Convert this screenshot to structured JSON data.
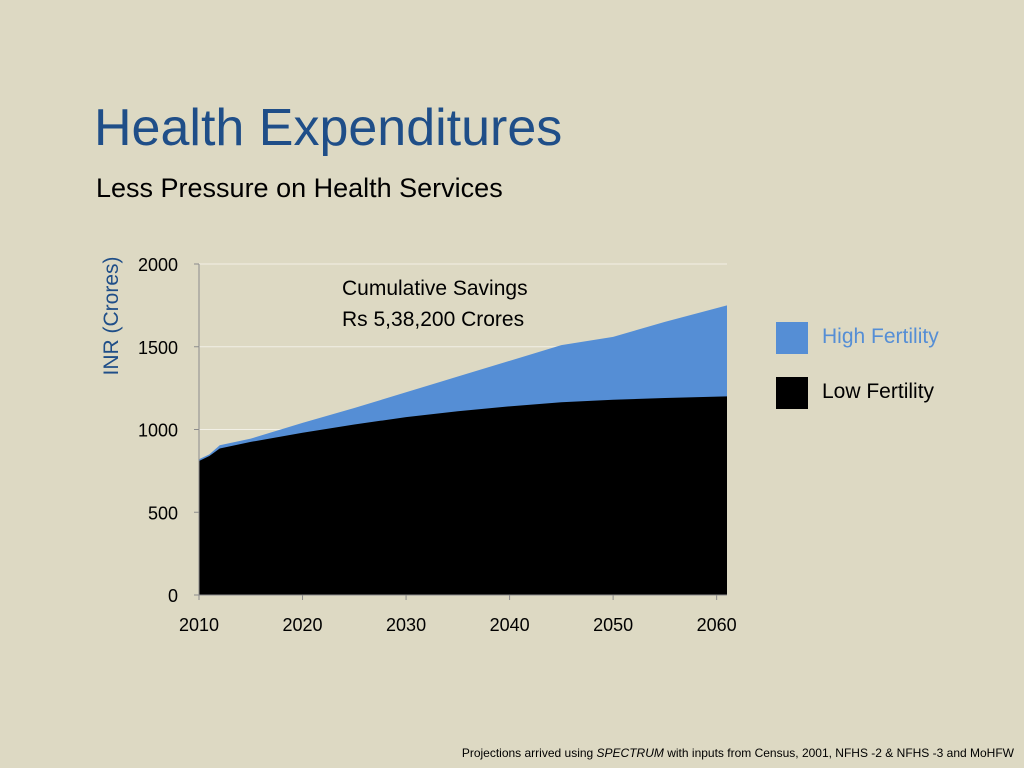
{
  "slide": {
    "title": "Health Expenditures",
    "subtitle": "Less Pressure on Health Services"
  },
  "annotation": {
    "line1": "Cumulative Savings",
    "line2": "Rs 5,38,200 Crores"
  },
  "footnote": {
    "prefix": "Projections arrived using ",
    "emphasis": "SPECTRUM",
    "suffix": " with inputs from Census, 2001, NFHS -2 & NFHS -3 and MoHFW"
  },
  "colors": {
    "background": "#ddd9c3",
    "title": "#1f4e88",
    "high_fertility": "#558ed5",
    "low_fertility": "#000000",
    "ylabel": "#1f4e88"
  },
  "chart_data": {
    "type": "area",
    "title": "",
    "xlabel": "",
    "ylabel": "INR (Crores)",
    "xlim": [
      2010,
      2061
    ],
    "ylim": [
      0,
      2000
    ],
    "xticks": [
      2010,
      2020,
      2030,
      2040,
      2050,
      2060
    ],
    "yticks": [
      0,
      500,
      1000,
      1500,
      2000
    ],
    "grid": true,
    "legend_position": "right",
    "series": [
      {
        "name": "High Fertility",
        "color": "#558ed5",
        "x": [
          2010,
          2011,
          2012,
          2015,
          2020,
          2025,
          2030,
          2035,
          2040,
          2045,
          2050,
          2055,
          2061
        ],
        "values": [
          820,
          850,
          905,
          945,
          1040,
          1130,
          1225,
          1320,
          1415,
          1510,
          1560,
          1650,
          1750
        ]
      },
      {
        "name": "Low Fertility",
        "color": "#000000",
        "x": [
          2010,
          2011,
          2012,
          2015,
          2020,
          2025,
          2030,
          2035,
          2040,
          2045,
          2050,
          2055,
          2061
        ],
        "values": [
          810,
          840,
          885,
          925,
          980,
          1030,
          1075,
          1110,
          1140,
          1165,
          1180,
          1190,
          1200
        ]
      }
    ]
  }
}
